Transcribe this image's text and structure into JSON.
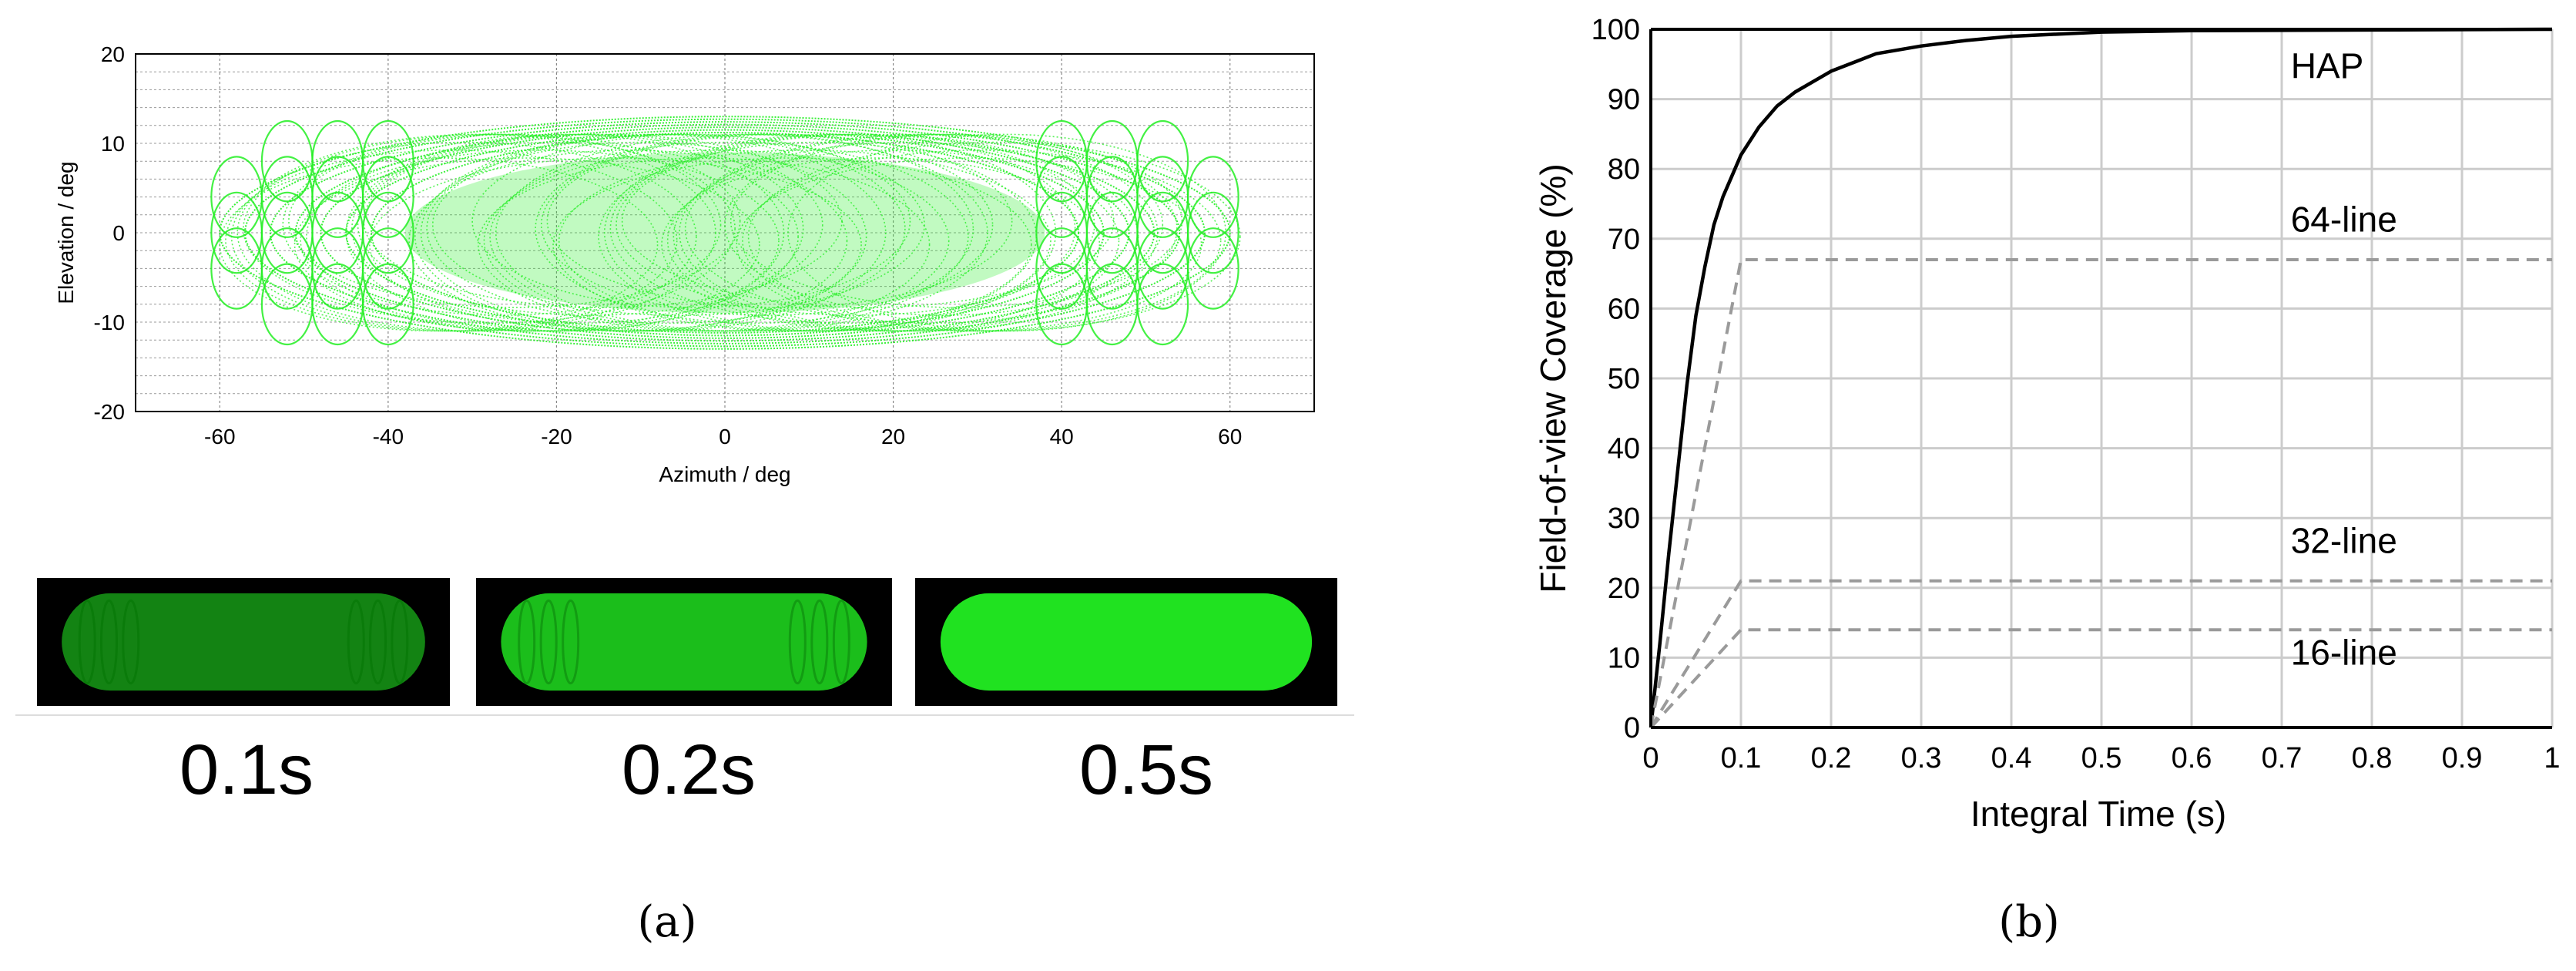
{
  "captions": {
    "a": "(a)",
    "b": "(b)"
  },
  "colors": {
    "point": "#22ee22",
    "hap": "#000000",
    "line": "#9a9a9a",
    "grid": "#cccccc",
    "thumb_bg": "#000000"
  },
  "thumbnails": [
    {
      "label": "0.1s",
      "style": "lobed"
    },
    {
      "label": "0.2s",
      "style": "fuller"
    },
    {
      "label": "0.5s",
      "style": "solid"
    }
  ],
  "chart_data": [
    {
      "id": "scan-pattern",
      "type": "scatter",
      "title": "",
      "xlabel": "Azimuth / deg",
      "ylabel": "Elevation / deg",
      "xlim": [
        -70,
        70
      ],
      "ylim": [
        -20,
        20
      ],
      "xticks": [
        -60,
        -40,
        -20,
        0,
        20,
        40,
        60
      ],
      "yticks": [
        -20,
        -10,
        0,
        10,
        20
      ],
      "grid": true,
      "series": [
        {
          "description_points": "dense rosette scan pattern, approximate envelope",
          "envelope_upper": [
            [
              -60,
              3
            ],
            [
              -56,
              6
            ],
            [
              -50,
              9
            ],
            [
              -40,
              11.5
            ],
            [
              -30,
              12.8
            ],
            [
              -20,
              13
            ],
            [
              0,
              12.5
            ],
            [
              20,
              12.8
            ],
            [
              30,
              12.8
            ],
            [
              40,
              11.5
            ],
            [
              50,
              9
            ],
            [
              56,
              6
            ],
            [
              60,
              3
            ]
          ],
          "envelope_lower": [
            [
              -60,
              -3
            ],
            [
              -56,
              -6
            ],
            [
              -50,
              -9
            ],
            [
              -40,
              -11.5
            ],
            [
              -30,
              -13
            ],
            [
              -20,
              -13.5
            ],
            [
              0,
              -13
            ],
            [
              20,
              -13.5
            ],
            [
              30,
              -13
            ],
            [
              40,
              -11.5
            ],
            [
              50,
              -9
            ],
            [
              56,
              -6
            ],
            [
              60,
              -3
            ]
          ]
        }
      ]
    },
    {
      "id": "coverage",
      "type": "line",
      "title": "",
      "xlabel": "Integral Time (s)",
      "ylabel": "Field-of-view Coverage (%)",
      "xlim": [
        0,
        1
      ],
      "ylim": [
        0,
        100
      ],
      "xticks": [
        0,
        0.1,
        0.2,
        0.3,
        0.4,
        0.5,
        0.6,
        0.7,
        0.8,
        0.9,
        1
      ],
      "xtick_labels": [
        "0",
        "0.1",
        "0.2",
        "0.3",
        "0.4",
        "0.5",
        "0.6",
        "0.7",
        "0.8",
        "0.9",
        "1"
      ],
      "yticks": [
        0,
        10,
        20,
        30,
        40,
        50,
        60,
        70,
        80,
        90,
        100
      ],
      "grid": true,
      "series": [
        {
          "name": "HAP",
          "style": "solid",
          "x": [
            0,
            0.01,
            0.02,
            0.03,
            0.04,
            0.05,
            0.06,
            0.07,
            0.08,
            0.09,
            0.1,
            0.12,
            0.14,
            0.16,
            0.2,
            0.25,
            0.3,
            0.35,
            0.4,
            0.5,
            0.6,
            0.8,
            1
          ],
          "y": [
            0,
            12,
            25,
            37,
            49,
            59,
            66,
            72,
            76,
            79,
            82,
            86,
            89,
            91,
            94,
            96.5,
            97.6,
            98.4,
            99,
            99.6,
            99.8,
            99.9,
            100
          ]
        },
        {
          "name": "64-line",
          "style": "dashed",
          "x": [
            0,
            0.1,
            1
          ],
          "y": [
            0,
            67,
            67
          ]
        },
        {
          "name": "32-line",
          "style": "dashed",
          "x": [
            0,
            0.1,
            1
          ],
          "y": [
            0,
            21,
            21
          ]
        },
        {
          "name": "16-line",
          "style": "dashed",
          "x": [
            0,
            0.1,
            1
          ],
          "y": [
            0,
            14,
            14
          ]
        }
      ],
      "annotations": [
        {
          "text": "HAP",
          "x": 0.71,
          "y": 93
        },
        {
          "text": "64-line",
          "x": 0.71,
          "y": 71
        },
        {
          "text": "32-line",
          "x": 0.71,
          "y": 25
        },
        {
          "text": "16-line",
          "x": 0.71,
          "y": 9
        }
      ]
    }
  ]
}
